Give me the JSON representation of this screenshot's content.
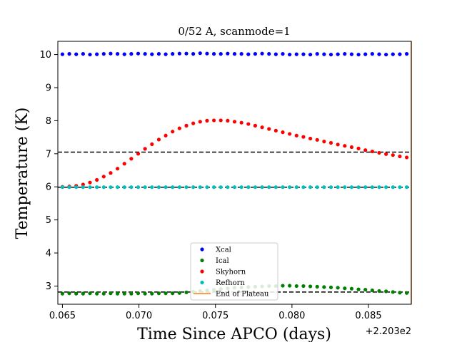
{
  "chart_data": {
    "type": "scatter",
    "title": "0/52 A, scanmode=1",
    "xlabel": "Time Since APCO (days)",
    "ylabel": "Temperature (K)",
    "x_offset_label": "+2.203e2",
    "xlim": [
      0.0647,
      0.0878
    ],
    "ylim": [
      2.45,
      10.4
    ],
    "x_ticks": [
      0.065,
      0.07,
      0.075,
      0.08,
      0.085
    ],
    "x_tick_labels": [
      "0.065",
      "0.070",
      "0.075",
      "0.080",
      "0.085"
    ],
    "y_ticks": [
      3,
      4,
      5,
      6,
      7,
      8,
      9,
      10
    ],
    "y_tick_labels": [
      "3",
      "4",
      "5",
      "6",
      "7",
      "8",
      "9",
      "10"
    ],
    "grid": false,
    "legend_position": "bottom-center",
    "x_start": 0.065,
    "x_step": 0.00045,
    "series": [
      {
        "name": "Xcal",
        "color": "#0000ff",
        "values": [
          10.01,
          10.02,
          10.01,
          10.02,
          10.0,
          10.01,
          10.02,
          10.03,
          10.02,
          10.01,
          10.02,
          10.03,
          10.02,
          10.01,
          10.02,
          10.01,
          10.02,
          10.03,
          10.03,
          10.02,
          10.04,
          10.03,
          10.02,
          10.02,
          10.03,
          10.02,
          10.02,
          10.01,
          10.02,
          10.03,
          10.02,
          10.01,
          10.02,
          10.0,
          10.01,
          10.01,
          10.0,
          10.02,
          10.01,
          10.0,
          10.01,
          10.02,
          10.01,
          10.0,
          10.01,
          10.02,
          10.01,
          10.0,
          10.01,
          10.01,
          10.02
        ]
      },
      {
        "name": "Ical",
        "color": "#008000",
        "values": [
          2.77,
          2.78,
          2.77,
          2.77,
          2.78,
          2.77,
          2.77,
          2.78,
          2.77,
          2.77,
          2.77,
          2.78,
          2.77,
          2.77,
          2.78,
          2.78,
          2.78,
          2.79,
          2.81,
          2.83,
          2.85,
          2.87,
          2.89,
          2.91,
          2.93,
          2.95,
          2.96,
          2.97,
          2.98,
          2.99,
          3.0,
          3.0,
          3.01,
          3.01,
          3.0,
          3.0,
          2.99,
          2.98,
          2.97,
          2.96,
          2.95,
          2.93,
          2.92,
          2.9,
          2.89,
          2.87,
          2.85,
          2.84,
          2.82,
          2.8,
          2.79
        ]
      },
      {
        "name": "Skyhorn",
        "color": "#ff0000",
        "values": [
          6.0,
          6.01,
          6.03,
          6.07,
          6.13,
          6.21,
          6.31,
          6.42,
          6.55,
          6.7,
          6.85,
          7.0,
          7.15,
          7.29,
          7.43,
          7.55,
          7.67,
          7.77,
          7.85,
          7.92,
          7.97,
          8.0,
          8.01,
          8.01,
          8.0,
          7.97,
          7.94,
          7.9,
          7.85,
          7.8,
          7.75,
          7.7,
          7.65,
          7.6,
          7.55,
          7.51,
          7.46,
          7.42,
          7.37,
          7.33,
          7.28,
          7.24,
          7.2,
          7.16,
          7.11,
          7.07,
          7.03,
          6.99,
          6.96,
          6.92,
          6.89
        ]
      },
      {
        "name": "Refhorn",
        "color": "#00bfbf",
        "values": [
          5.99,
          5.99,
          5.99,
          5.99,
          5.99,
          5.99,
          5.99,
          5.99,
          5.99,
          5.99,
          5.99,
          5.99,
          5.99,
          5.99,
          5.99,
          5.99,
          5.99,
          5.99,
          5.99,
          5.99,
          5.99,
          5.99,
          5.99,
          5.99,
          5.99,
          5.99,
          5.99,
          5.99,
          5.99,
          5.99,
          5.99,
          5.99,
          5.99,
          5.99,
          5.99,
          5.99,
          5.99,
          5.99,
          5.99,
          5.99,
          5.99,
          5.99,
          5.99,
          5.99,
          5.99,
          5.99,
          5.99,
          5.99,
          5.99,
          5.99,
          5.99
        ]
      }
    ],
    "horizontal_lines": [
      {
        "y": 7.05,
        "color": "#000000",
        "style": "dashed"
      },
      {
        "y": 5.99,
        "color": "#000000",
        "style": "dashed"
      },
      {
        "y": 2.82,
        "color": "#000000",
        "style": "dashed"
      }
    ],
    "vertical_lines": [
      {
        "name": "End of Plateau",
        "x": 0.0878,
        "color": "#ff7f0e"
      }
    ],
    "legend": [
      {
        "label": "Xcal",
        "color": "#0000ff",
        "kind": "marker"
      },
      {
        "label": "Ical",
        "color": "#008000",
        "kind": "marker"
      },
      {
        "label": "Skyhorn",
        "color": "#ff0000",
        "kind": "marker"
      },
      {
        "label": "Refhorn",
        "color": "#00bfbf",
        "kind": "marker"
      },
      {
        "label": "End of Plateau",
        "color": "#ff7f0e",
        "kind": "line"
      }
    ]
  }
}
